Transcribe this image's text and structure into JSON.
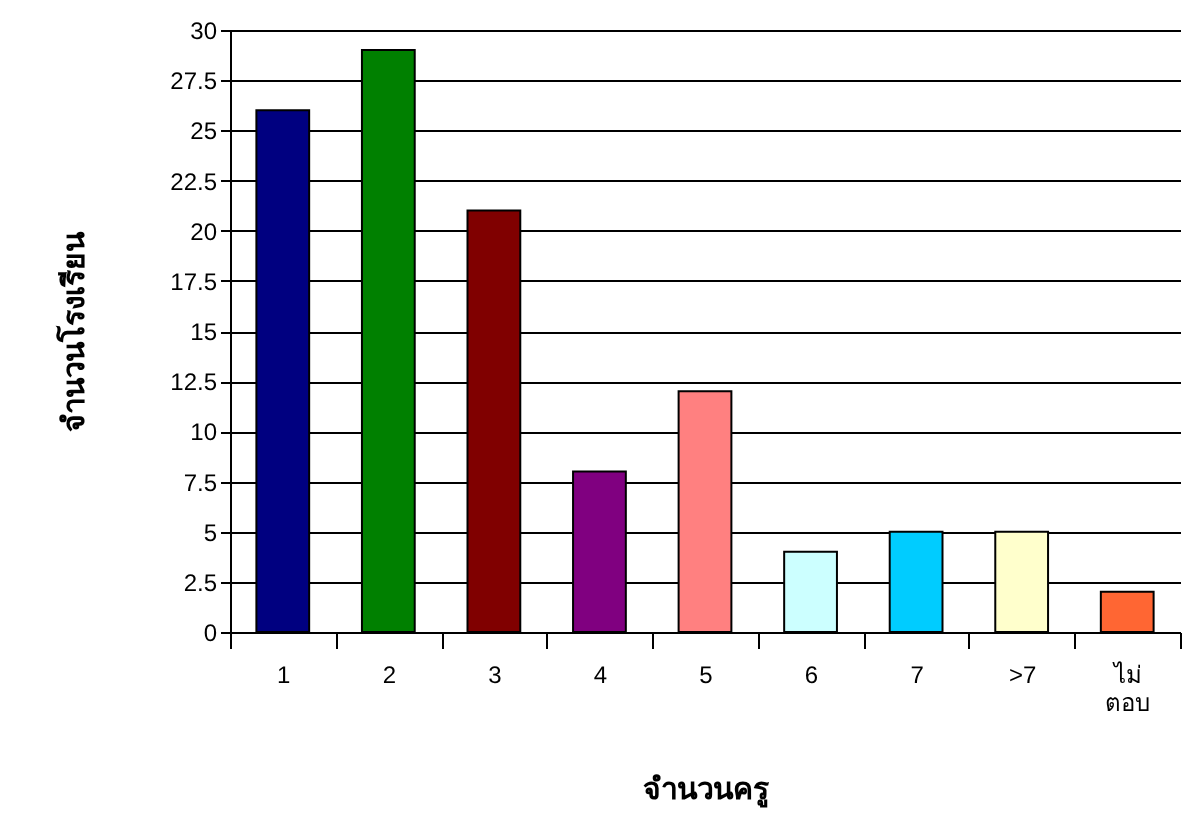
{
  "chart_data": {
    "type": "bar",
    "xlabel": "จำนวนครู",
    "ylabel": "จำนวนโรงเรียน",
    "categories": [
      "1",
      "2",
      "3",
      "4",
      "5",
      "6",
      "7",
      ">7",
      "ไม่\nตอบ"
    ],
    "values": [
      26,
      29,
      21,
      8,
      12,
      4,
      5,
      5,
      2
    ],
    "colors": [
      "#000080",
      "#008000",
      "#800000",
      "#800080",
      "#ff8080",
      "#ccffff",
      "#00ccff",
      "#ffffcc",
      "#ff6633"
    ],
    "ylim": [
      0,
      30
    ],
    "yticks": [
      0,
      2.5,
      5,
      7.5,
      10,
      12.5,
      15,
      17.5,
      20,
      22.5,
      25,
      27.5,
      30
    ],
    "grid": "y"
  }
}
